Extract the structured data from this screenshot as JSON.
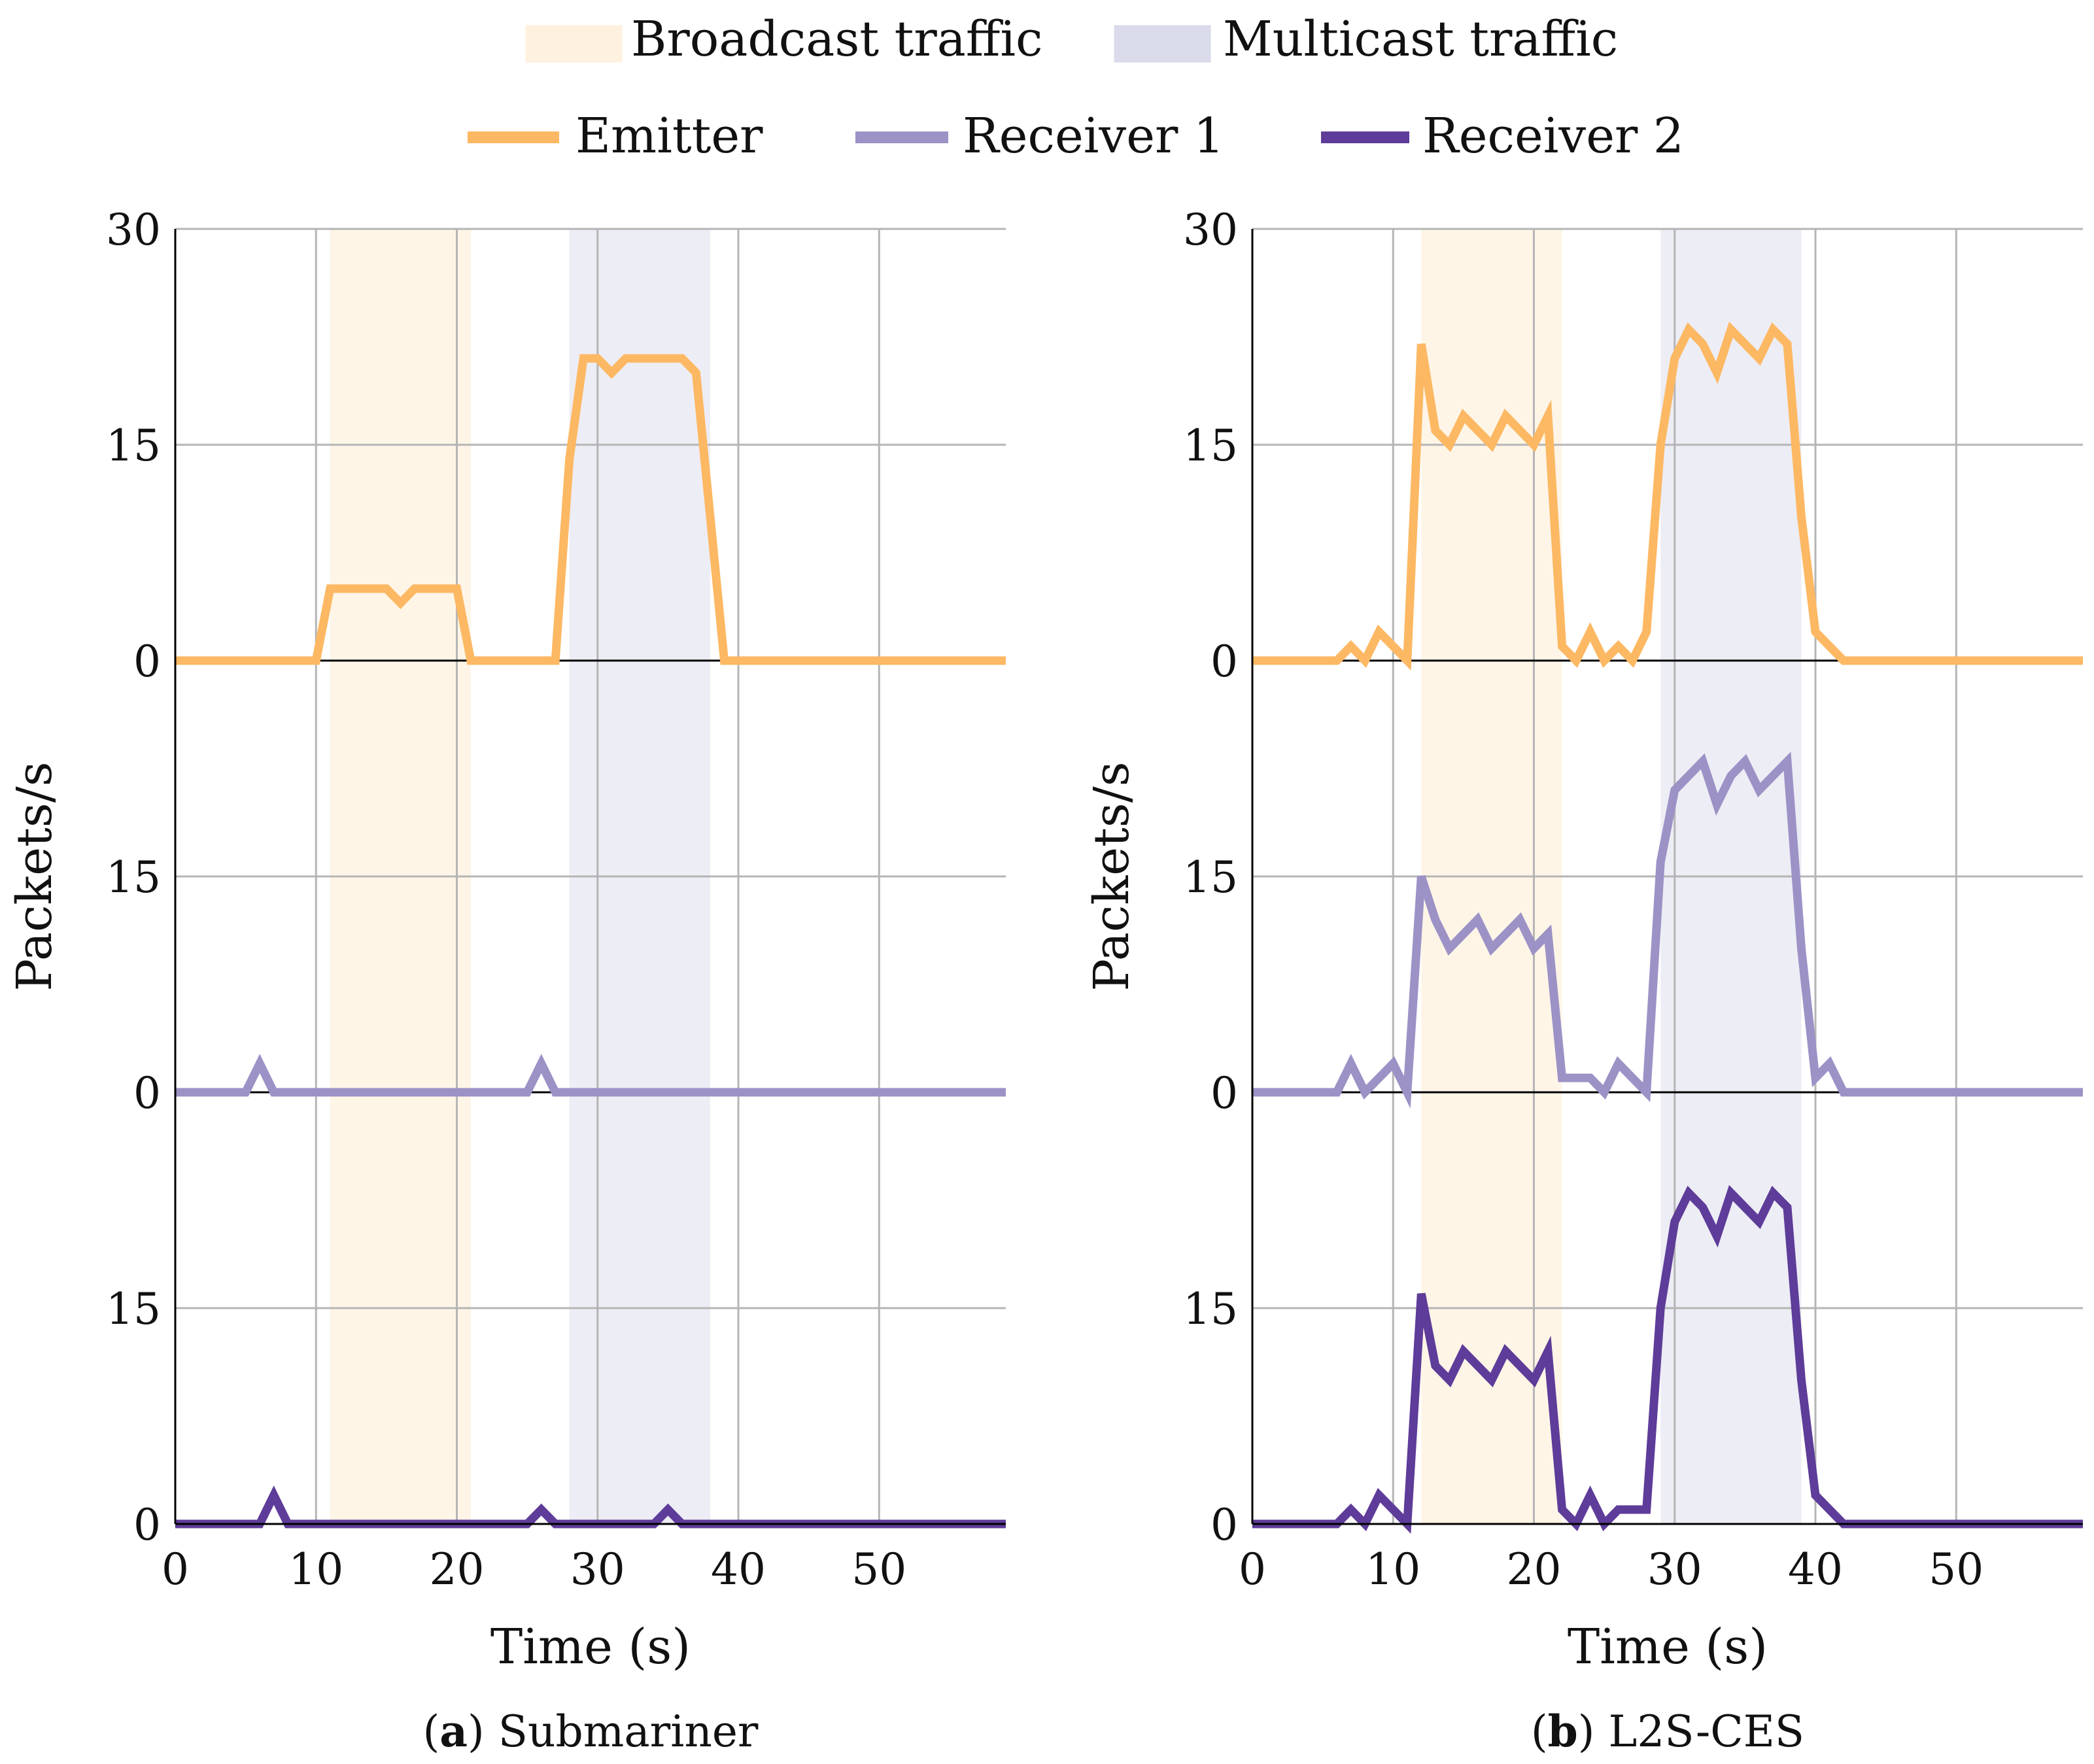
{
  "legend": {
    "bands": [
      {
        "name": "Broadcast traffic",
        "color": "#FEF1DF"
      },
      {
        "name": "Multicast traffic",
        "color": "#D9DAEA"
      }
    ],
    "series": [
      {
        "name": "Emitter",
        "color": "#FDB863"
      },
      {
        "name": "Receiver 1",
        "color": "#9C92C6"
      },
      {
        "name": "Receiver 2",
        "color": "#5E3C99"
      }
    ]
  },
  "chart_data": [
    {
      "type": "line",
      "caption_letter": "a",
      "caption_text": "Submariner",
      "xlabel": "Time (s)",
      "ylabel": "Packets/s",
      "xlim": [
        0,
        59
      ],
      "xticks": [
        0,
        10,
        20,
        30,
        40,
        50
      ],
      "stack_tick_labels": [
        "0",
        "15",
        "0",
        "15",
        "0",
        "15",
        "30"
      ],
      "panel_ylim": [
        0,
        30
      ],
      "grid": true,
      "legend_position": "top",
      "bands": [
        {
          "name": "Broadcast traffic",
          "x": [
            11,
            21
          ]
        },
        {
          "name": "Multicast traffic",
          "x": [
            28,
            38
          ]
        }
      ],
      "series": [
        {
          "name": "Emitter",
          "points": [
            [
              0,
              0
            ],
            [
              10,
              0
            ],
            [
              11,
              5
            ],
            [
              15,
              5
            ],
            [
              16,
              4
            ],
            [
              17,
              5
            ],
            [
              20,
              5
            ],
            [
              21,
              0
            ],
            [
              27,
              0
            ],
            [
              28,
              14
            ],
            [
              29,
              21
            ],
            [
              30,
              21
            ],
            [
              31,
              20
            ],
            [
              32,
              21
            ],
            [
              36,
              21
            ],
            [
              37,
              20
            ],
            [
              38,
              10
            ],
            [
              39,
              0
            ],
            [
              59,
              0
            ]
          ]
        },
        {
          "name": "Receiver 1",
          "points": [
            [
              0,
              0
            ],
            [
              5,
              0
            ],
            [
              6,
              2
            ],
            [
              7,
              0
            ],
            [
              25,
              0
            ],
            [
              26,
              2
            ],
            [
              27,
              0
            ],
            [
              59,
              0
            ]
          ]
        },
        {
          "name": "Receiver 2",
          "points": [
            [
              0,
              0
            ],
            [
              6,
              0
            ],
            [
              7,
              2
            ],
            [
              8,
              0
            ],
            [
              25,
              0
            ],
            [
              26,
              1
            ],
            [
              27,
              0
            ],
            [
              34,
              0
            ],
            [
              35,
              1
            ],
            [
              36,
              0
            ],
            [
              59,
              0
            ]
          ]
        }
      ]
    },
    {
      "type": "line",
      "caption_letter": "b",
      "caption_text": "L2S-CES",
      "xlabel": "Time (s)",
      "ylabel": "Packets/s",
      "xlim": [
        0,
        59
      ],
      "xticks": [
        0,
        10,
        20,
        30,
        40,
        50
      ],
      "stack_tick_labels": [
        "0",
        "15",
        "0",
        "15",
        "0",
        "15",
        "30"
      ],
      "panel_ylim": [
        0,
        30
      ],
      "grid": true,
      "legend_position": "top",
      "bands": [
        {
          "name": "Broadcast traffic",
          "x": [
            12,
            22
          ]
        },
        {
          "name": "Multicast traffic",
          "x": [
            29,
            39
          ]
        }
      ],
      "series": [
        {
          "name": "Emitter",
          "points": [
            [
              0,
              0
            ],
            [
              6,
              0
            ],
            [
              7,
              1
            ],
            [
              8,
              0
            ],
            [
              9,
              2
            ],
            [
              10,
              1
            ],
            [
              11,
              0
            ],
            [
              12,
              22
            ],
            [
              13,
              16
            ],
            [
              14,
              15
            ],
            [
              15,
              17
            ],
            [
              16,
              16
            ],
            [
              17,
              15
            ],
            [
              18,
              17
            ],
            [
              19,
              16
            ],
            [
              20,
              15
            ],
            [
              21,
              17
            ],
            [
              22,
              1
            ],
            [
              23,
              0
            ],
            [
              24,
              2
            ],
            [
              25,
              0
            ],
            [
              26,
              1
            ],
            [
              27,
              0
            ],
            [
              28,
              2
            ],
            [
              29,
              15
            ],
            [
              30,
              21
            ],
            [
              31,
              23
            ],
            [
              32,
              22
            ],
            [
              33,
              20
            ],
            [
              34,
              23
            ],
            [
              35,
              22
            ],
            [
              36,
              21
            ],
            [
              37,
              23
            ],
            [
              38,
              22
            ],
            [
              39,
              10
            ],
            [
              40,
              2
            ],
            [
              41,
              1
            ],
            [
              42,
              0
            ],
            [
              59,
              0
            ]
          ]
        },
        {
          "name": "Receiver 1",
          "points": [
            [
              0,
              0
            ],
            [
              6,
              0
            ],
            [
              7,
              2
            ],
            [
              8,
              0
            ],
            [
              9,
              1
            ],
            [
              10,
              2
            ],
            [
              11,
              0
            ],
            [
              12,
              15
            ],
            [
              13,
              12
            ],
            [
              14,
              10
            ],
            [
              15,
              11
            ],
            [
              16,
              12
            ],
            [
              17,
              10
            ],
            [
              18,
              11
            ],
            [
              19,
              12
            ],
            [
              20,
              10
            ],
            [
              21,
              11
            ],
            [
              22,
              1
            ],
            [
              24,
              1
            ],
            [
              25,
              0
            ],
            [
              26,
              2
            ],
            [
              27,
              1
            ],
            [
              28,
              0
            ],
            [
              29,
              16
            ],
            [
              30,
              21
            ],
            [
              31,
              22
            ],
            [
              32,
              23
            ],
            [
              33,
              20
            ],
            [
              34,
              22
            ],
            [
              35,
              23
            ],
            [
              36,
              21
            ],
            [
              37,
              22
            ],
            [
              38,
              23
            ],
            [
              39,
              10
            ],
            [
              40,
              1
            ],
            [
              41,
              2
            ],
            [
              42,
              0
            ],
            [
              59,
              0
            ]
          ]
        },
        {
          "name": "Receiver 2",
          "points": [
            [
              0,
              0
            ],
            [
              6,
              0
            ],
            [
              7,
              1
            ],
            [
              8,
              0
            ],
            [
              9,
              2
            ],
            [
              10,
              1
            ],
            [
              11,
              0
            ],
            [
              12,
              16
            ],
            [
              13,
              11
            ],
            [
              14,
              10
            ],
            [
              15,
              12
            ],
            [
              16,
              11
            ],
            [
              17,
              10
            ],
            [
              18,
              12
            ],
            [
              19,
              11
            ],
            [
              20,
              10
            ],
            [
              21,
              12
            ],
            [
              22,
              1
            ],
            [
              23,
              0
            ],
            [
              24,
              2
            ],
            [
              25,
              0
            ],
            [
              26,
              1
            ],
            [
              28,
              1
            ],
            [
              29,
              15
            ],
            [
              30,
              21
            ],
            [
              31,
              23
            ],
            [
              32,
              22
            ],
            [
              33,
              20
            ],
            [
              34,
              23
            ],
            [
              35,
              22
            ],
            [
              36,
              21
            ],
            [
              37,
              23
            ],
            [
              38,
              22
            ],
            [
              39,
              10
            ],
            [
              40,
              2
            ],
            [
              41,
              1
            ],
            [
              42,
              0
            ],
            [
              59,
              0
            ]
          ]
        }
      ]
    }
  ]
}
